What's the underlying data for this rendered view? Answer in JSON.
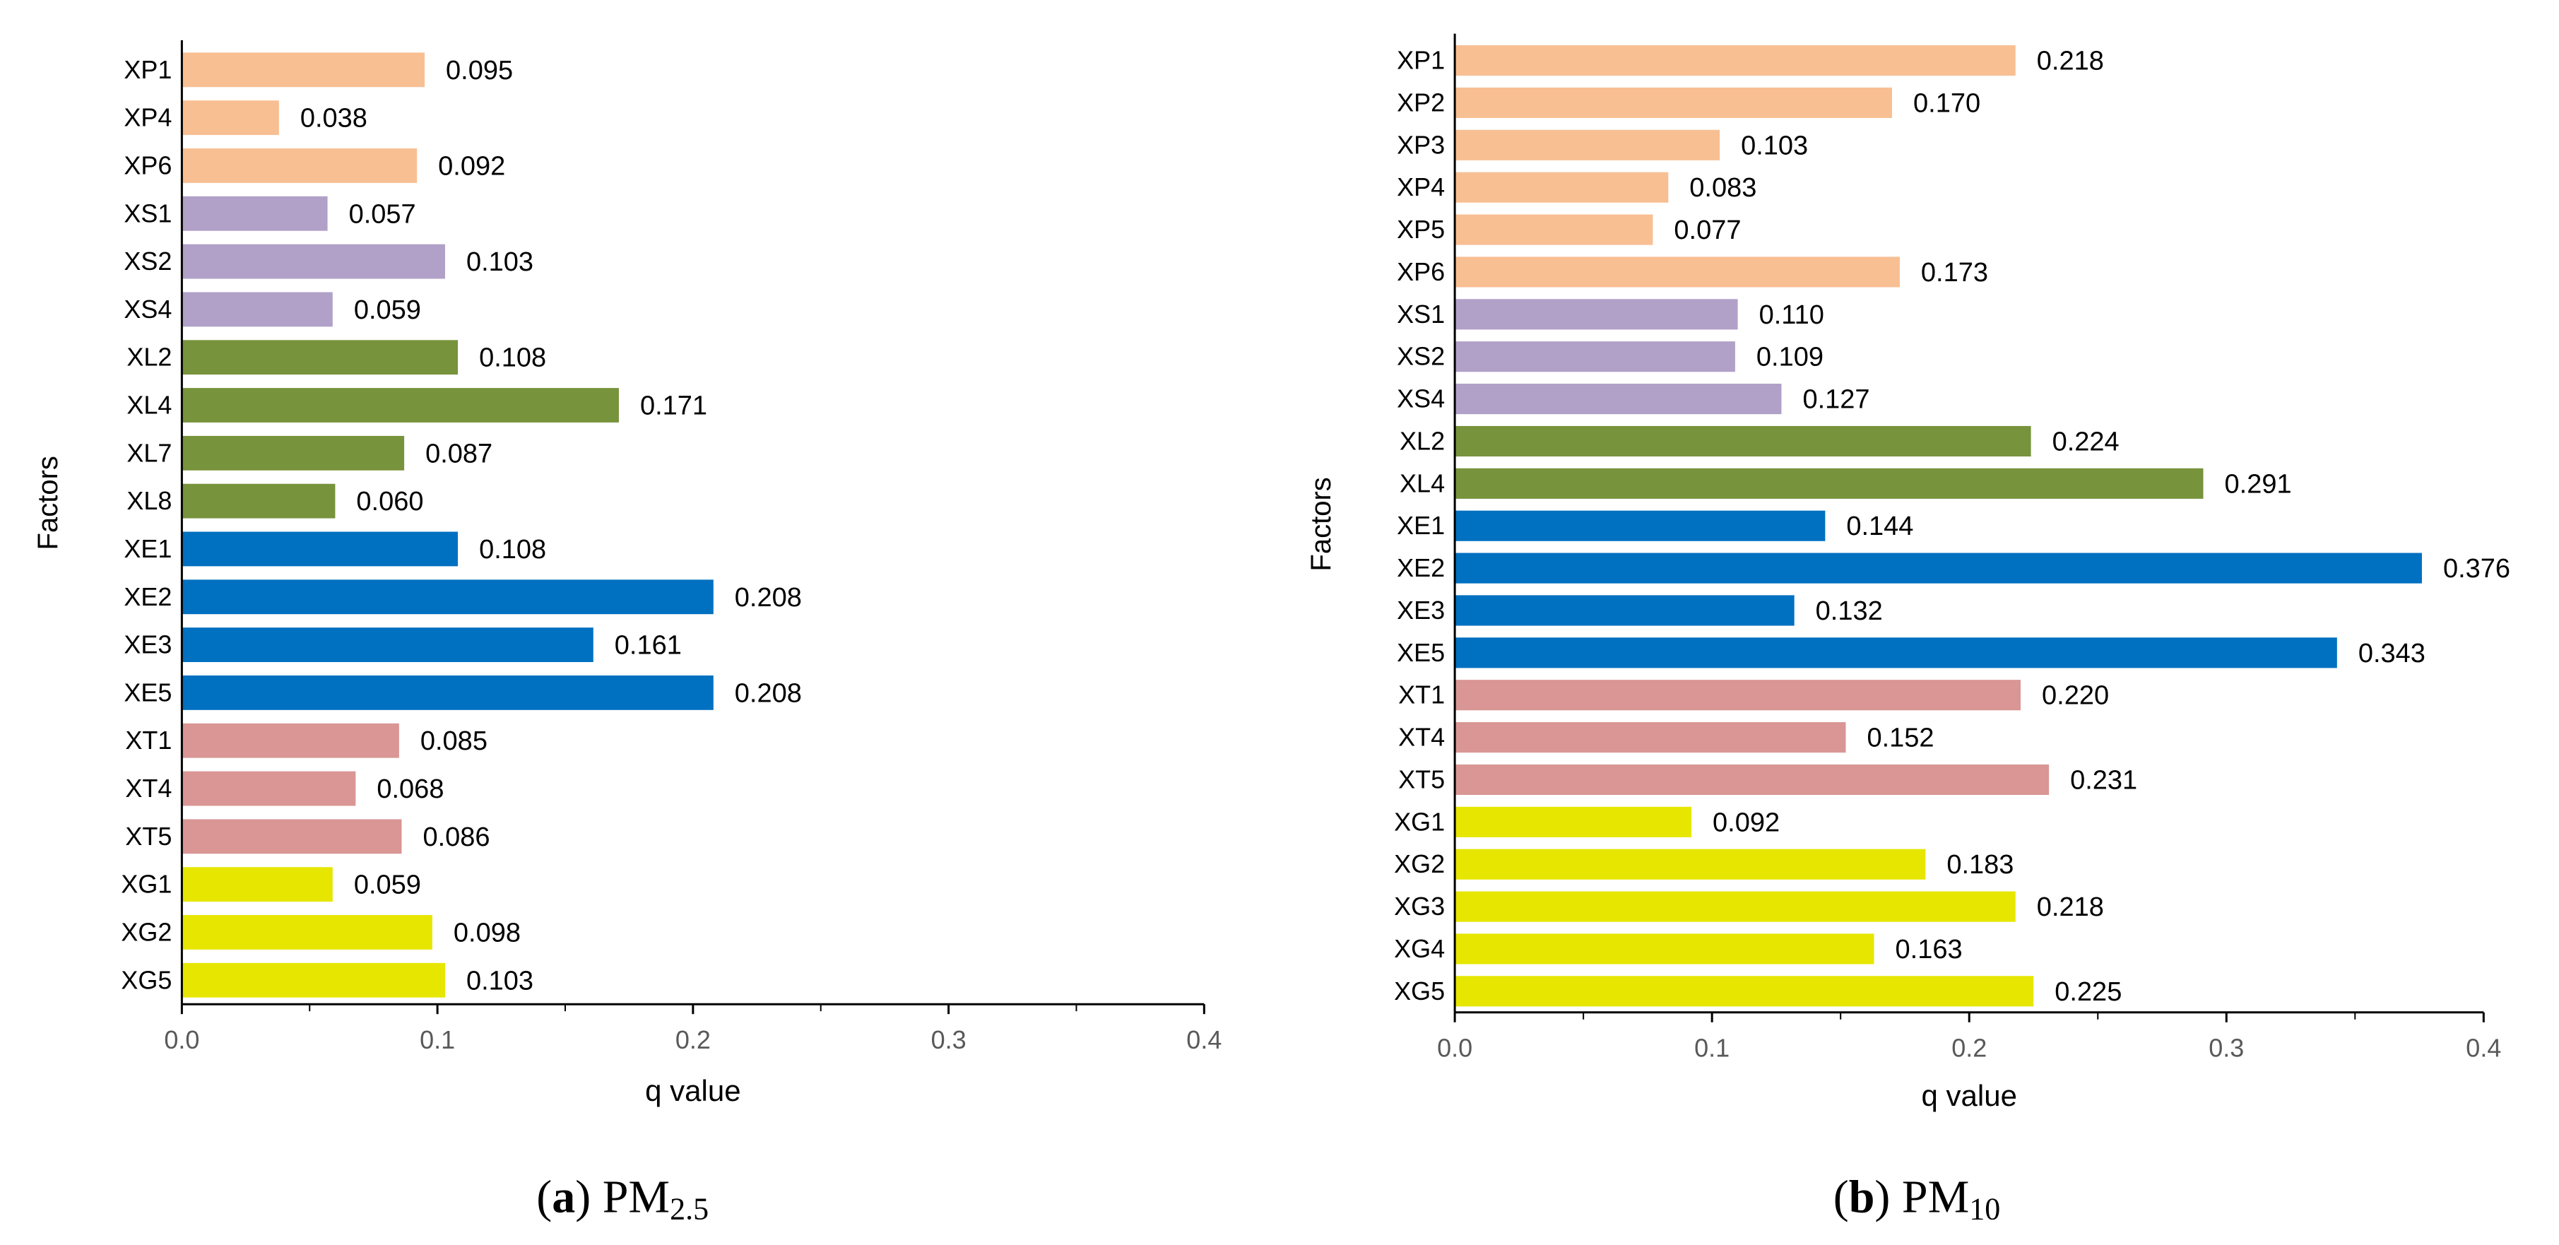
{
  "colors": {
    "XP": "#F8BF93",
    "XS": "#B1A0C8",
    "XL": "#77933C",
    "XE": "#0070C0",
    "XT": "#D99694",
    "XG": "#E6E600",
    "axis": "#000000"
  },
  "chart_data": [
    {
      "type": "bar",
      "orientation": "horizontal",
      "ylabel": "Factors",
      "xlabel": "q value",
      "xlim": [
        0,
        0.4
      ],
      "x_ticks": [
        "0.0",
        "0.1",
        "0.2",
        "0.3",
        "0.4"
      ],
      "caption": {
        "letter": "a",
        "prefix": "PM",
        "subscript": "2.5"
      },
      "categories": [
        "XP1",
        "XP4",
        "XP6",
        "XS1",
        "XS2",
        "XS4",
        "XL2",
        "XL4",
        "XL7",
        "XL8",
        "XE1",
        "XE2",
        "XE3",
        "XE5",
        "XT1",
        "XT4",
        "XT5",
        "XG1",
        "XG2",
        "XG5"
      ],
      "values": [
        0.095,
        0.038,
        0.092,
        0.057,
        0.103,
        0.059,
        0.108,
        0.171,
        0.087,
        0.06,
        0.108,
        0.208,
        0.161,
        0.208,
        0.085,
        0.068,
        0.086,
        0.059,
        0.098,
        0.103
      ],
      "labels": [
        "0.095",
        "0.038",
        "0.092",
        "0.057",
        "0.103",
        "0.059",
        "0.108",
        "0.171",
        "0.087",
        "0.060",
        "0.108",
        "0.208",
        "0.161",
        "0.208",
        "0.085",
        "0.068",
        "0.086",
        "0.059",
        "0.098",
        "0.103"
      ]
    },
    {
      "type": "bar",
      "orientation": "horizontal",
      "ylabel": "Factors",
      "xlabel": "q value",
      "xlim": [
        0,
        0.4
      ],
      "x_ticks": [
        "0.0",
        "0.1",
        "0.2",
        "0.3",
        "0.4"
      ],
      "caption": {
        "letter": "b",
        "prefix": "PM",
        "subscript": "10"
      },
      "categories": [
        "XP1",
        "XP2",
        "XP3",
        "XP4",
        "XP5",
        "XP6",
        "XS1",
        "XS2",
        "XS4",
        "XL2",
        "XL4",
        "XE1",
        "XE2",
        "XE3",
        "XE5",
        "XT1",
        "XT4",
        "XT5",
        "XG1",
        "XG2",
        "XG3",
        "XG4",
        "XG5"
      ],
      "values": [
        0.218,
        0.17,
        0.103,
        0.083,
        0.077,
        0.173,
        0.11,
        0.109,
        0.127,
        0.224,
        0.291,
        0.144,
        0.376,
        0.132,
        0.343,
        0.22,
        0.152,
        0.231,
        0.092,
        0.183,
        0.218,
        0.163,
        0.225
      ],
      "labels": [
        "0.218",
        "0.170",
        "0.103",
        "0.083",
        "0.077",
        "0.173",
        "0.110",
        "0.109",
        "0.127",
        "0.224",
        "0.291",
        "0.144",
        "0.376",
        "0.132",
        "0.343",
        "0.220",
        "0.152",
        "0.231",
        "0.092",
        "0.183",
        "0.218",
        "0.163",
        "0.225"
      ]
    }
  ]
}
